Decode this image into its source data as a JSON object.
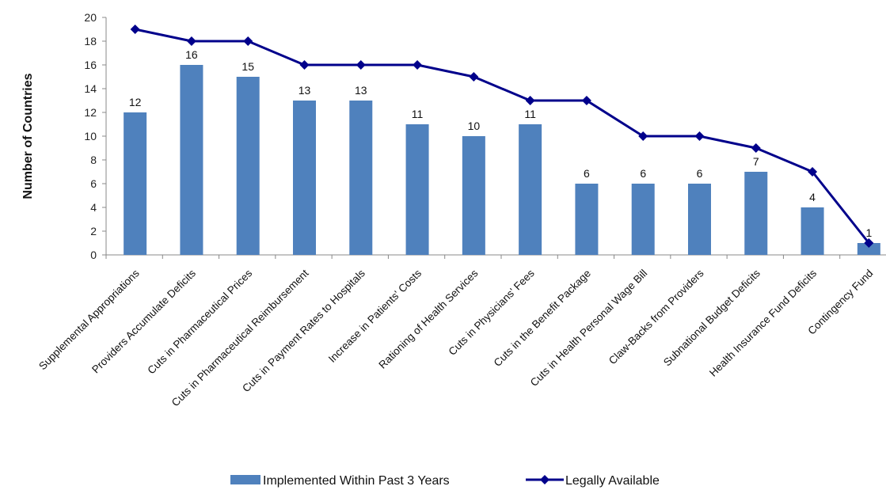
{
  "chart_data": {
    "type": "bar",
    "title": "",
    "xlabel": "",
    "ylabel": "Number of Countries",
    "ylim": [
      0,
      20
    ],
    "yticks": [
      0,
      2,
      4,
      6,
      8,
      10,
      12,
      14,
      16,
      18,
      20
    ],
    "grid": false,
    "legend_position": "bottom",
    "categories": [
      "Supplemental Appropriations",
      "Providers Accumulate Deficits",
      "Cuts in Pharmaceutical Prices",
      "Cuts in Pharmaceutical Reimbursement",
      "Cuts in Payment Rates to Hospitals",
      "Increase in Patients' Costs",
      "Rationing of Health Services",
      "Cuts in Physicians' Fees",
      "Cuts in the Benefit Package",
      "Cuts in Health Personal Wage Bill",
      "Claw-Backs from Providers",
      "Subnational Budget Deficits",
      "Health Insurance Fund Deficits",
      "Contingency Fund"
    ],
    "series": [
      {
        "name": "Implemented Within Past 3 Years",
        "type": "bar",
        "color": "#4F81BD",
        "values": [
          12,
          16,
          15,
          13,
          13,
          11,
          10,
          11,
          6,
          6,
          6,
          7,
          4,
          1
        ]
      },
      {
        "name": "Legally Available",
        "type": "line",
        "color": "#00008B",
        "marker": "diamond",
        "values": [
          19,
          18,
          18,
          16,
          16,
          16,
          15,
          13,
          13,
          10,
          10,
          9,
          7,
          1
        ]
      }
    ]
  }
}
